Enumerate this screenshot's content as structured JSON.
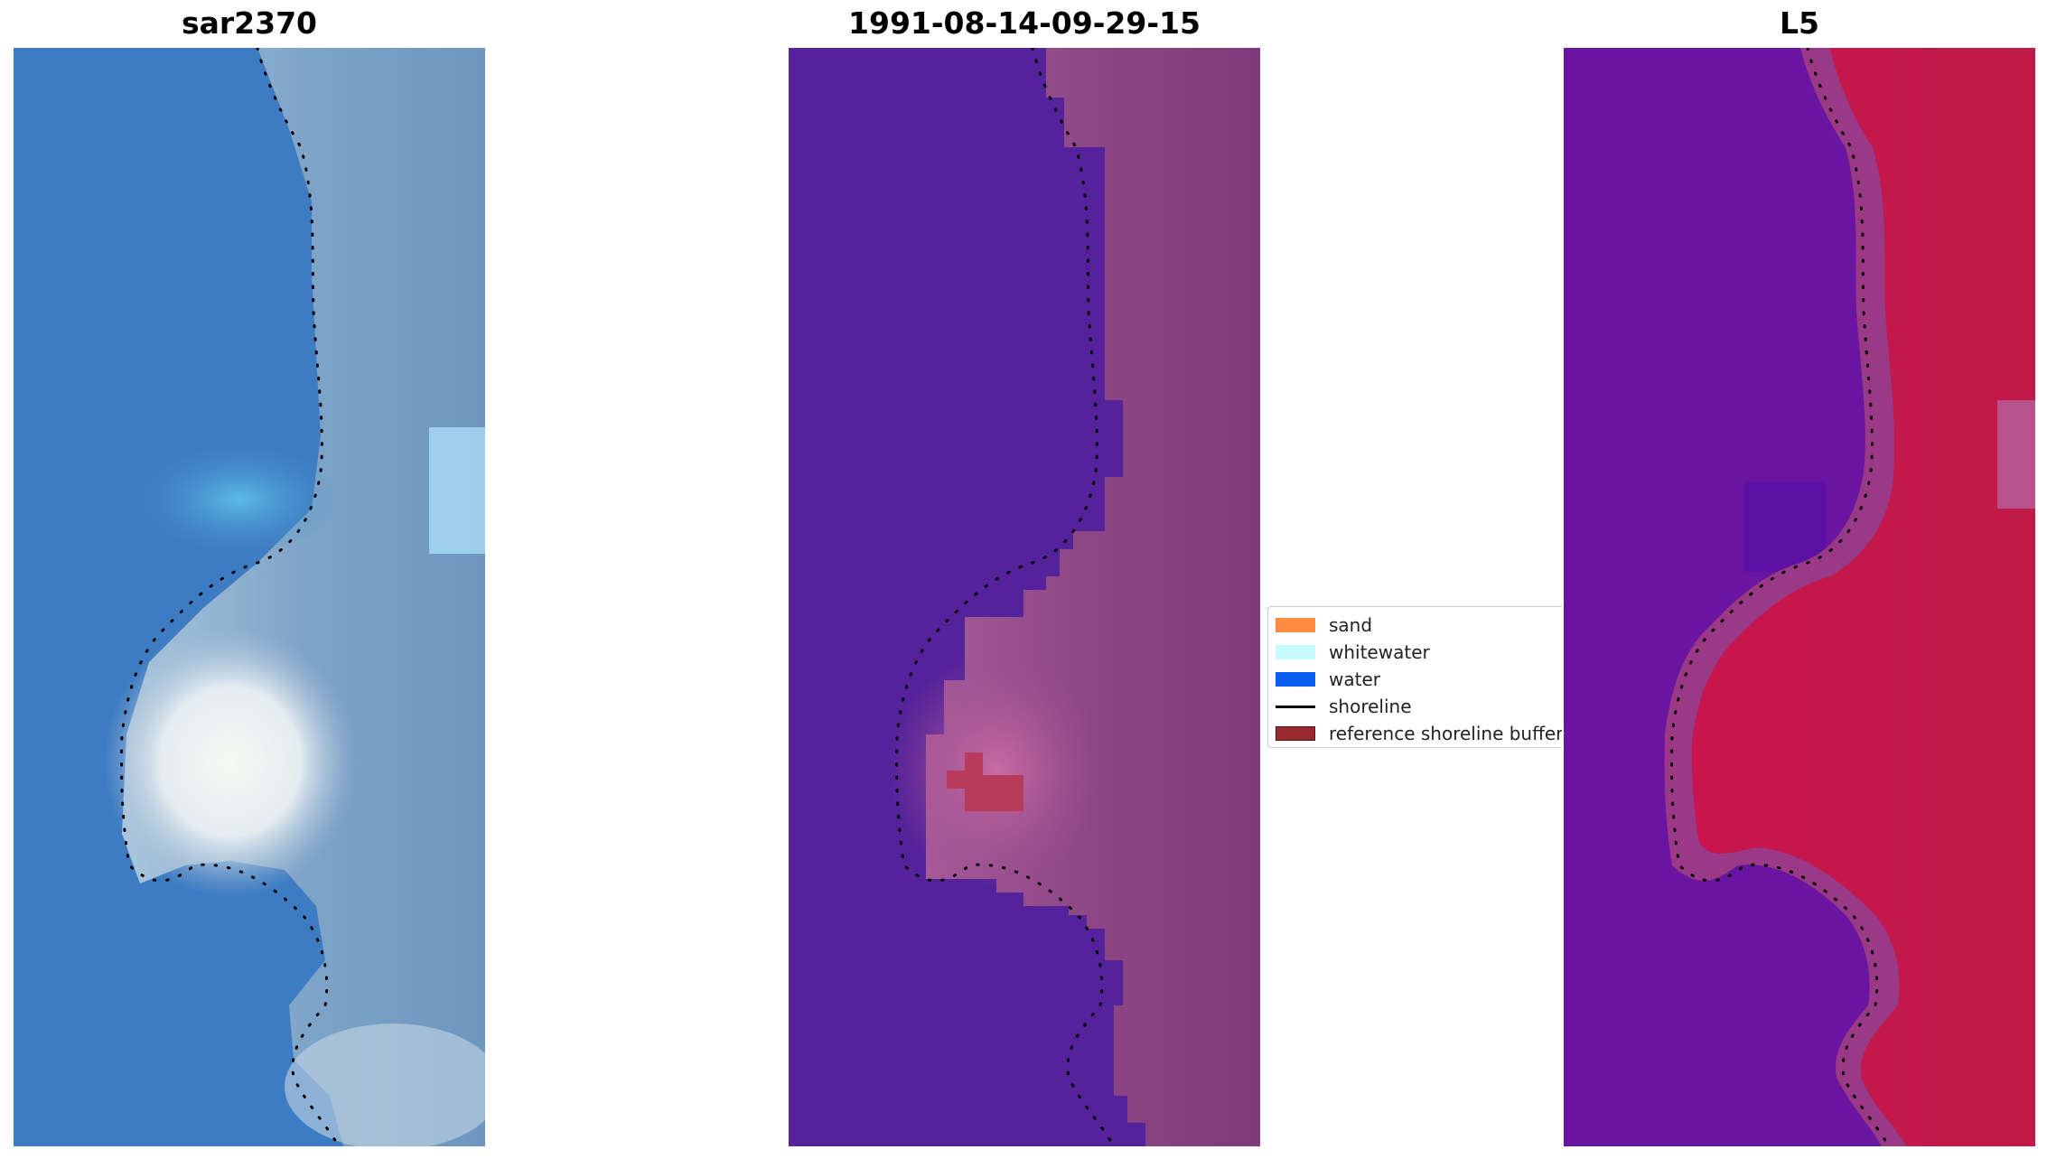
{
  "titles": {
    "rgb": "sar2370",
    "classification": "1991-08-14-09-29-15",
    "index": "L5"
  },
  "legend": {
    "items": [
      {
        "label": "sand",
        "kind": "patch",
        "color": "#ff8c40"
      },
      {
        "label": "whitewater",
        "kind": "patch",
        "color": "#c8fcfc"
      },
      {
        "label": "water",
        "kind": "patch",
        "color": "#0a5ff0"
      },
      {
        "label": "shoreline",
        "kind": "line",
        "color": "#000000"
      },
      {
        "label": "reference shoreline buffer",
        "kind": "patch",
        "color": "#992a30",
        "border": "#5a1010"
      }
    ]
  },
  "colors": {
    "rgb_water": "#3d7fc6",
    "rgb_sand": "#9ab3cf",
    "rgb_whitewater": "#f4f8f4",
    "class_water": "#54229a",
    "class_land": "#8e4686",
    "class_land_light": "#c0689e",
    "class_buffer": "#b83a5a",
    "index_water": "#6a12a2",
    "index_land": "#c2184a",
    "index_transition": "#9a3680",
    "shoreline": "#000000"
  }
}
